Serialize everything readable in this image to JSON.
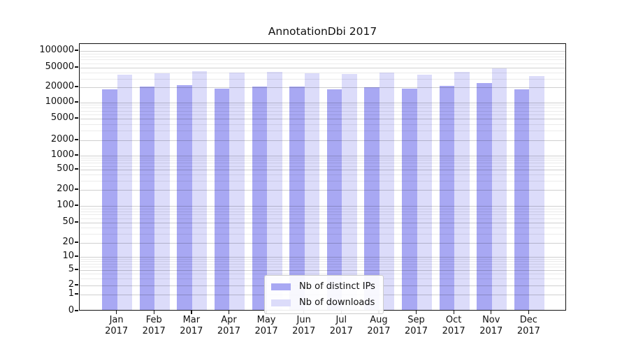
{
  "title": "AnnotationDbi 2017",
  "chart_data": {
    "type": "bar",
    "title": "AnnotationDbi 2017",
    "categories": [
      "Jan 2017",
      "Feb 2017",
      "Mar 2017",
      "Apr 2017",
      "May 2017",
      "Jun 2017",
      "Jul 2017",
      "Aug 2017",
      "Sep 2017",
      "Oct 2017",
      "Nov 2017",
      "Dec 2017"
    ],
    "series": [
      {
        "name": "Nb of distinct IPs",
        "color": "#a8a8f3",
        "values": [
          17300,
          19100,
          20400,
          17900,
          19400,
          19100,
          17300,
          18500,
          17900,
          19700,
          22900,
          17000
        ]
      },
      {
        "name": "Nb of downloads",
        "color": "#dcdcfa",
        "values": [
          34000,
          36300,
          40000,
          36800,
          38700,
          36000,
          34500,
          37100,
          33400,
          38000,
          45000,
          32000
        ]
      }
    ],
    "xlabel": "",
    "ylabel": "",
    "yscale": "symlog-base10",
    "yticks": [
      0,
      1,
      2,
      5,
      10,
      20,
      50,
      100,
      200,
      500,
      1000,
      2000,
      5000,
      10000,
      20000,
      50000,
      100000
    ],
    "ylim": [
      0,
      145000
    ],
    "grid": true,
    "legend_position": "lower center",
    "bar_layout": "grouped"
  }
}
